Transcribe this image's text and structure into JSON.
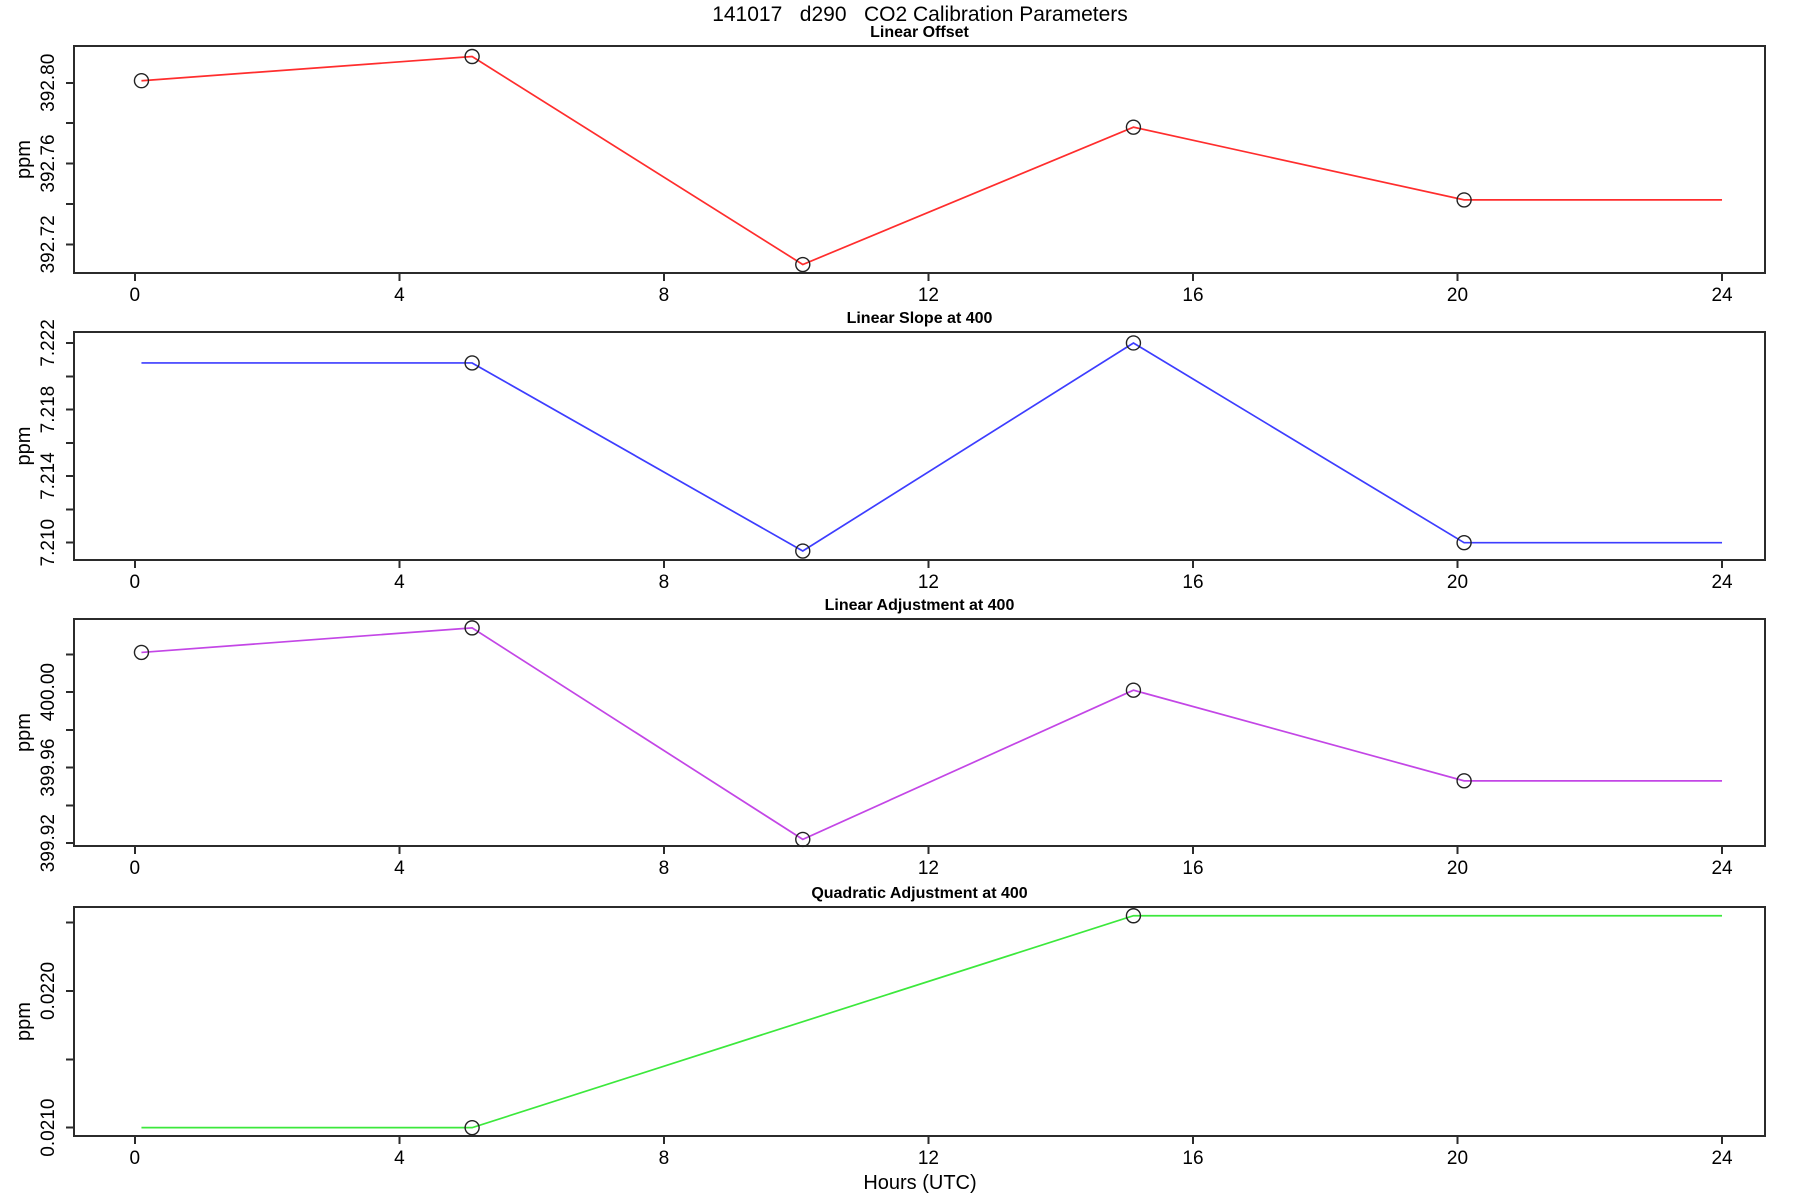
{
  "figure": {
    "main_title": "141017   d290   CO2 Calibration Parameters",
    "x_axis_label": "Hours (UTC)",
    "background_color": "#FFFFFF",
    "axis_color": "#2B2B2B",
    "marker_color": "#222222"
  },
  "x_axis": {
    "xlim": [
      -0.92,
      24.65
    ],
    "ticks": [
      {
        "value": 0,
        "label": "0"
      },
      {
        "value": 4,
        "label": "4"
      },
      {
        "value": 8,
        "label": "8"
      },
      {
        "value": 12,
        "label": "12"
      },
      {
        "value": 16,
        "label": "16"
      },
      {
        "value": 20,
        "label": "20"
      },
      {
        "value": 24,
        "label": "24"
      }
    ]
  },
  "chart_data": [
    {
      "type": "line",
      "title": "Linear Offset",
      "ylabel": "ppm",
      "line_color": "#FF2D2D",
      "x": [
        0.1,
        5.1,
        10.1,
        15.1,
        20.1,
        24
      ],
      "y": [
        392.801,
        392.813,
        392.71,
        392.778,
        392.742,
        392.742
      ],
      "point_markers": [
        true,
        true,
        true,
        true,
        true,
        false
      ],
      "ylim": [
        392.7058,
        392.8182
      ],
      "yticks": [
        {
          "value": 392.72,
          "label": "392.72"
        },
        {
          "value": 392.74,
          "label": ""
        },
        {
          "value": 392.76,
          "label": "392.76"
        },
        {
          "value": 392.78,
          "label": ""
        },
        {
          "value": 392.8,
          "label": "392.80"
        }
      ]
    },
    {
      "type": "line",
      "title": "Linear Slope at 400",
      "ylabel": "ppm",
      "line_color": "#3D3DFF",
      "x": [
        0.1,
        5.1,
        10.1,
        15.1,
        20.1,
        24
      ],
      "y": [
        7.2208,
        7.2208,
        7.2095,
        7.222,
        7.21,
        7.21
      ],
      "point_markers": [
        false,
        true,
        true,
        true,
        true,
        false
      ],
      "ylim": [
        7.20896,
        7.22266
      ],
      "yticks": [
        {
          "value": 7.21,
          "label": "7.210"
        },
        {
          "value": 7.212,
          "label": ""
        },
        {
          "value": 7.214,
          "label": "7.214"
        },
        {
          "value": 7.216,
          "label": ""
        },
        {
          "value": 7.218,
          "label": "7.218"
        },
        {
          "value": 7.22,
          "label": ""
        },
        {
          "value": 7.222,
          "label": "7.222"
        }
      ]
    },
    {
      "type": "line",
      "title": "Linear Adjustment at 400",
      "ylabel": "ppm",
      "line_color": "#C346E6",
      "x": [
        0.1,
        5.1,
        10.1,
        15.1,
        20.1,
        24
      ],
      "y": [
        400.021,
        400.034,
        399.922,
        400.001,
        399.953,
        399.953
      ],
      "point_markers": [
        true,
        true,
        true,
        true,
        true,
        false
      ],
      "ylim": [
        399.9185,
        400.0387
      ],
      "yticks": [
        {
          "value": 399.92,
          "label": "399.92"
        },
        {
          "value": 399.94,
          "label": ""
        },
        {
          "value": 399.96,
          "label": "399.96"
        },
        {
          "value": 399.98,
          "label": ""
        },
        {
          "value": 400.0,
          "label": "400.00"
        },
        {
          "value": 400.02,
          "label": ""
        }
      ]
    },
    {
      "type": "line",
      "title": "Quadratic Adjustment at 400",
      "ylabel": "ppm",
      "line_color": "#3CE83C",
      "x": [
        0.1,
        5.1,
        15.1,
        24
      ],
      "y": [
        0.021,
        0.021,
        0.02255,
        0.02255
      ],
      "point_markers": [
        false,
        true,
        true,
        false
      ],
      "ylim": [
        0.020939,
        0.022614
      ],
      "yticks": [
        {
          "value": 0.021,
          "label": "0.0210"
        },
        {
          "value": 0.0215,
          "label": ""
        },
        {
          "value": 0.022,
          "label": "0.0220"
        },
        {
          "value": 0.0225,
          "label": ""
        }
      ]
    }
  ]
}
